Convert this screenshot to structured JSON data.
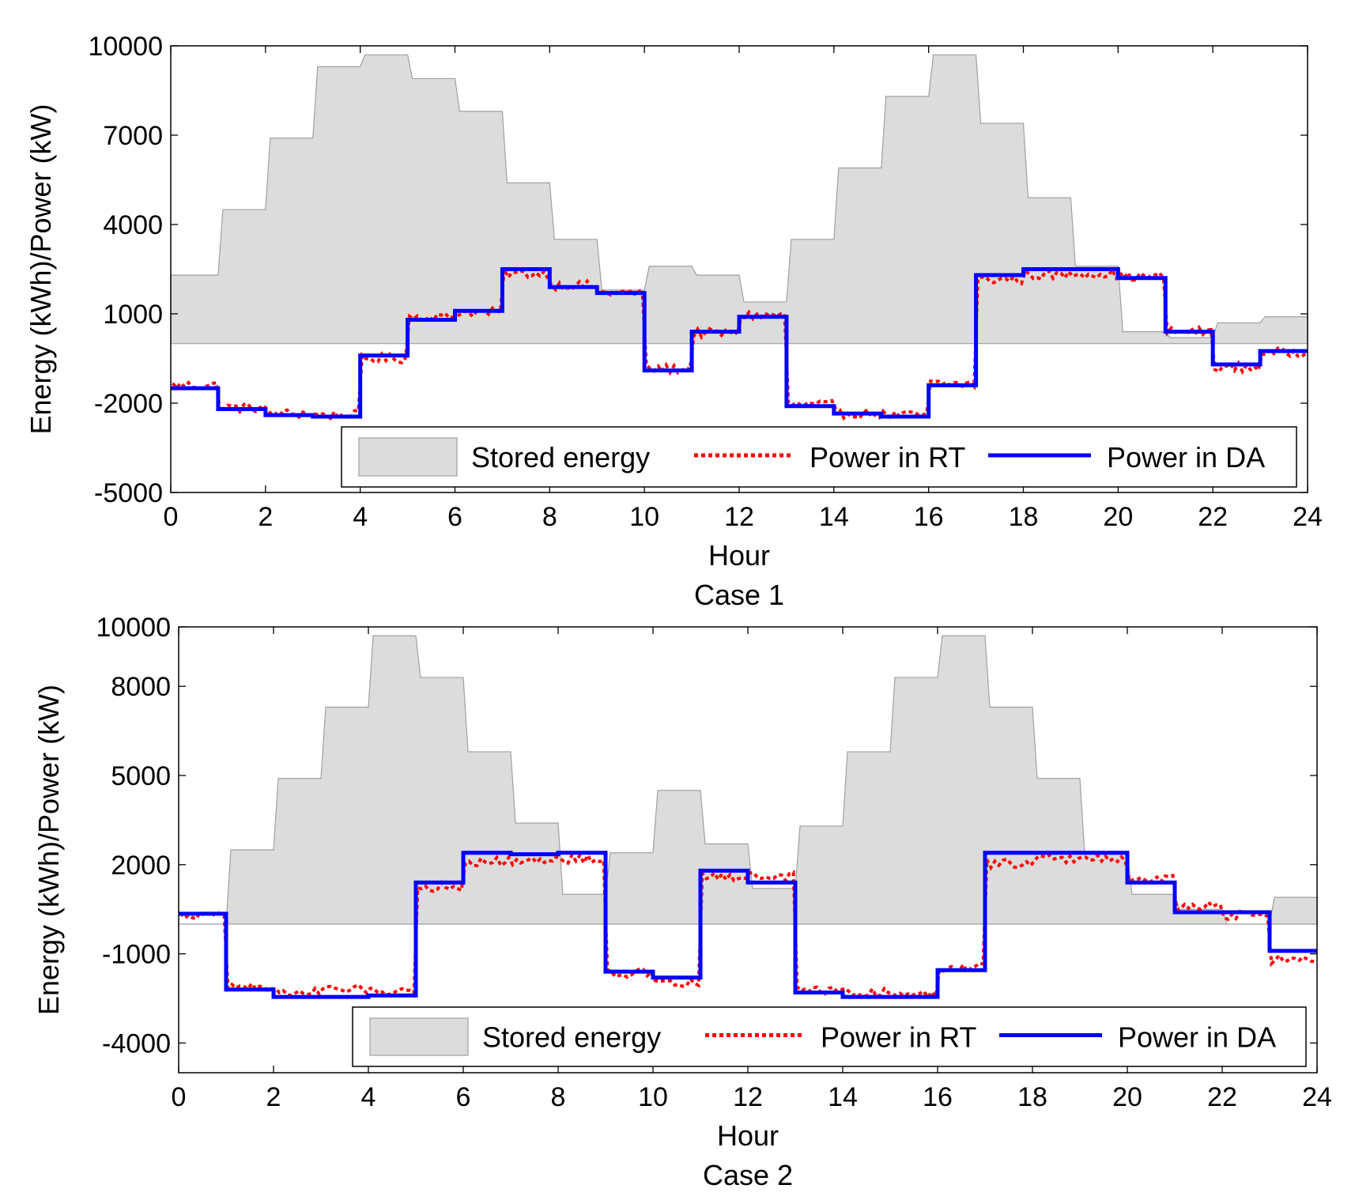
{
  "colors": {
    "stored_fill": "#dcdcdc",
    "stored_edge": "#a0a0a0",
    "rt": "#ff0000",
    "da": "#0000ff",
    "axis": "#000000",
    "background": "#ffffff"
  },
  "chart_data": [
    {
      "type": "area",
      "title": "Case 1",
      "xlabel": "Hour",
      "ylabel": "Energy (kWh)/Power (kW)",
      "xlim": [
        0,
        24
      ],
      "ylim": [
        -5000,
        10000
      ],
      "xticks": [
        0,
        2,
        4,
        6,
        8,
        10,
        12,
        14,
        16,
        18,
        20,
        22,
        24
      ],
      "xtick_labels": [
        "0",
        "2",
        "4",
        "6",
        "8",
        "10",
        "12",
        "14",
        "16",
        "18",
        "20",
        "22",
        "24"
      ],
      "yticks": [
        -5000,
        -2000,
        1000,
        4000,
        7000,
        10000
      ],
      "ytick_labels": [
        "-5000",
        "-2000",
        "1000",
        "4000",
        "7000",
        "10000"
      ],
      "legend": {
        "position": "bottom-right",
        "entries": [
          "Stored energy",
          "Power in RT",
          "Power in DA"
        ]
      },
      "series": [
        {
          "name": "Stored energy",
          "kind": "area",
          "hours": [
            0,
            1,
            2,
            3,
            4,
            5,
            6,
            7,
            8,
            9,
            10,
            11,
            12,
            13,
            14,
            15,
            16,
            17,
            18,
            19,
            20,
            21,
            22,
            23
          ],
          "values": [
            2300,
            4500,
            6900,
            9300,
            9700,
            8900,
            7800,
            5400,
            3500,
            1800,
            2600,
            2300,
            1400,
            3500,
            5900,
            8300,
            9700,
            7400,
            4900,
            2600,
            400,
            200,
            700,
            900
          ]
        },
        {
          "name": "Power in DA",
          "kind": "step",
          "hours": [
            0,
            1,
            2,
            3,
            4,
            5,
            6,
            7,
            8,
            9,
            10,
            11,
            12,
            13,
            14,
            15,
            16,
            17,
            18,
            19,
            20,
            21,
            22,
            23
          ],
          "values": [
            -1500,
            -2200,
            -2400,
            -2450,
            -400,
            800,
            1100,
            2500,
            1900,
            1700,
            -900,
            400,
            900,
            -2100,
            -2350,
            -2450,
            -1400,
            2300,
            2500,
            2500,
            2200,
            400,
            -700,
            -250
          ]
        },
        {
          "name": "Power in RT",
          "kind": "step-noisy",
          "hours": [
            0,
            1,
            2,
            3,
            4,
            5,
            6,
            7,
            8,
            9,
            10,
            11,
            12,
            13,
            14,
            15,
            16,
            17,
            18,
            19,
            20,
            21,
            22,
            23
          ],
          "values": [
            -1400,
            -2150,
            -2350,
            -2400,
            -500,
            900,
            1050,
            2350,
            1950,
            1700,
            -850,
            350,
            950,
            -2050,
            -2350,
            -2400,
            -1350,
            2150,
            2300,
            2350,
            2250,
            400,
            -800,
            -300
          ]
        }
      ]
    },
    {
      "type": "area",
      "title": "Case 2",
      "xlabel": "Hour",
      "ylabel": "Energy (kWh)/Power (kW)",
      "xlim": [
        0,
        24
      ],
      "ylim": [
        -5000,
        10000
      ],
      "xticks": [
        0,
        2,
        4,
        6,
        8,
        10,
        12,
        14,
        16,
        18,
        20,
        22,
        24
      ],
      "xtick_labels": [
        "0",
        "2",
        "4",
        "6",
        "8",
        "10",
        "12",
        "14",
        "16",
        "18",
        "20",
        "22",
        "24"
      ],
      "yticks": [
        -4000,
        -1000,
        2000,
        5000,
        8000,
        10000
      ],
      "ytick_labels": [
        "-4000",
        "-1000",
        "2000",
        "5000",
        "8000",
        "10000"
      ],
      "legend": {
        "position": "bottom-right",
        "entries": [
          "Stored energy",
          "Power in RT",
          "Power in DA"
        ]
      },
      "series": [
        {
          "name": "Stored energy",
          "kind": "area",
          "hours": [
            0,
            1,
            2,
            3,
            4,
            5,
            6,
            7,
            8,
            9,
            10,
            11,
            12,
            13,
            14,
            15,
            16,
            17,
            18,
            19,
            20,
            21,
            22,
            23
          ],
          "values": [
            0,
            2500,
            4900,
            7300,
            9700,
            8300,
            5800,
            3400,
            1000,
            2400,
            4500,
            2700,
            1200,
            3300,
            5800,
            8300,
            9700,
            7300,
            4900,
            2400,
            1000,
            500,
            0,
            900
          ]
        },
        {
          "name": "Power in DA",
          "kind": "step",
          "hours": [
            0,
            1,
            2,
            3,
            4,
            5,
            6,
            7,
            8,
            9,
            10,
            11,
            12,
            13,
            14,
            15,
            16,
            17,
            18,
            19,
            20,
            21,
            22,
            23
          ],
          "values": [
            350,
            -2200,
            -2450,
            -2450,
            -2400,
            1400,
            2400,
            2350,
            2400,
            -1600,
            -1800,
            1800,
            1400,
            -2300,
            -2450,
            -2450,
            -1550,
            2400,
            2400,
            2400,
            1400,
            400,
            400,
            -900
          ]
        },
        {
          "name": "Power in RT",
          "kind": "step-noisy",
          "hours": [
            0,
            1,
            2,
            3,
            4,
            5,
            6,
            7,
            8,
            9,
            10,
            11,
            12,
            13,
            14,
            15,
            16,
            17,
            18,
            19,
            20,
            21,
            22,
            23
          ],
          "values": [
            300,
            -2100,
            -2300,
            -2200,
            -2250,
            1250,
            2100,
            2150,
            2200,
            -1650,
            -2000,
            1600,
            1600,
            -2200,
            -2300,
            -2350,
            -1450,
            2050,
            2200,
            2200,
            1500,
            600,
            300,
            -1200
          ]
        }
      ]
    }
  ]
}
